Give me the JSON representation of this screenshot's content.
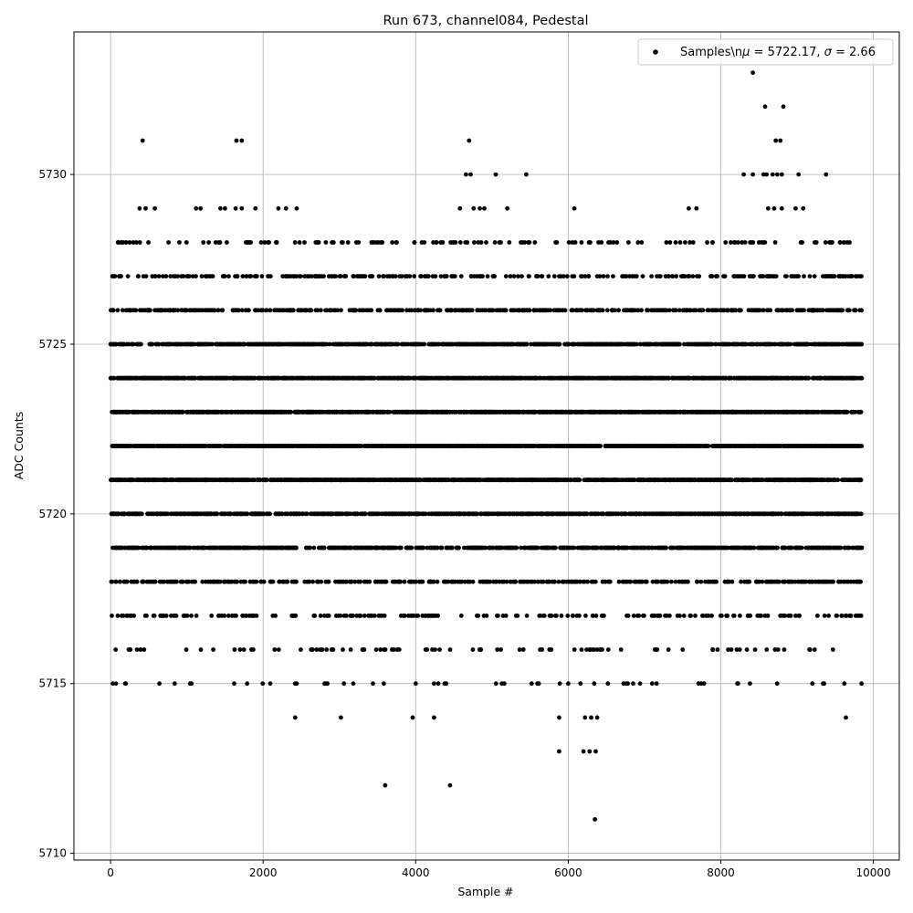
{
  "chart_data": {
    "type": "scatter",
    "title": "Run 673, channel084, Pedestal",
    "xlabel": "Sample #",
    "ylabel": "ADC Counts",
    "xlim": [
      -480,
      10340
    ],
    "ylim": [
      5709.8,
      5734.2
    ],
    "xticks": [
      0,
      2000,
      4000,
      6000,
      8000,
      10000
    ],
    "xtick_labels": [
      "0",
      "2000",
      "4000",
      "6000",
      "8000",
      "10000"
    ],
    "yticks": [
      5710,
      5715,
      5720,
      5725,
      5730
    ],
    "ytick_labels": [
      "5710",
      "5715",
      "5720",
      "5725",
      "5730"
    ],
    "grid": true,
    "legend_position": "top-right",
    "marker_color": "#000000",
    "series": [
      {
        "name": "Samples\\n$\\mu$ = 5722.17, $\\sigma$ = 2.66",
        "legend_prefix": "Samples\\n",
        "legend_mu": "μ",
        "legend_mu_value": " = 5722.17, ",
        "legend_sigma": "σ",
        "legend_sigma_value": " = 2.66",
        "sample_count": 9850,
        "mean": 5722.17,
        "sigma": 2.66,
        "points": [
          [
            30,
            5715
          ],
          [
            420,
            5731
          ],
          [
            1650,
            5731
          ],
          [
            1720,
            5731
          ],
          [
            4700,
            5731
          ],
          [
            8420,
            5733
          ],
          [
            8580,
            5732
          ],
          [
            8820,
            5732
          ],
          [
            8720,
            5731
          ],
          [
            8780,
            5731
          ],
          [
            3600,
            5712
          ],
          [
            4450,
            5712
          ],
          [
            6350,
            5711
          ],
          [
            5880,
            5713
          ],
          [
            6200,
            5713
          ],
          [
            6280,
            5713
          ],
          [
            6360,
            5713
          ],
          [
            2420,
            5714
          ],
          [
            3020,
            5714
          ],
          [
            3960,
            5714
          ],
          [
            4240,
            5714
          ],
          [
            5880,
            5714
          ],
          [
            6220,
            5714
          ],
          [
            6300,
            5714
          ],
          [
            6380,
            5714
          ],
          [
            9640,
            5714
          ],
          [
            640,
            5715
          ],
          [
            840,
            5715
          ],
          [
            1060,
            5715
          ],
          [
            1620,
            5715
          ],
          [
            2420,
            5715
          ],
          [
            2820,
            5715
          ],
          [
            3060,
            5715
          ],
          [
            3440,
            5715
          ],
          [
            4000,
            5715
          ],
          [
            4240,
            5715
          ],
          [
            4380,
            5715
          ],
          [
            5520,
            5715
          ],
          [
            6000,
            5715
          ],
          [
            6160,
            5715
          ],
          [
            6340,
            5715
          ],
          [
            6520,
            5715
          ],
          [
            6780,
            5715
          ],
          [
            7100,
            5715
          ],
          [
            7780,
            5715
          ],
          [
            9200,
            5715
          ],
          [
            9340,
            5715
          ],
          [
            9620,
            5715
          ],
          [
            4660,
            5730
          ],
          [
            4720,
            5730
          ],
          [
            5050,
            5730
          ],
          [
            5450,
            5730
          ],
          [
            8300,
            5730
          ],
          [
            8420,
            5730
          ],
          [
            8560,
            5730
          ],
          [
            8600,
            5730
          ],
          [
            8680,
            5730
          ],
          [
            8740,
            5730
          ],
          [
            8800,
            5730
          ],
          [
            9020,
            5730
          ],
          [
            9380,
            5730
          ],
          [
            380,
            5729
          ],
          [
            460,
            5729
          ],
          [
            580,
            5729
          ],
          [
            1120,
            5729
          ],
          [
            1180,
            5729
          ],
          [
            1440,
            5729
          ],
          [
            1500,
            5729
          ],
          [
            1640,
            5729
          ],
          [
            1720,
            5729
          ],
          [
            1900,
            5729
          ],
          [
            2200,
            5729
          ],
          [
            2300,
            5729
          ],
          [
            2440,
            5729
          ],
          [
            4580,
            5729
          ],
          [
            4760,
            5729
          ],
          [
            4840,
            5729
          ],
          [
            4900,
            5729
          ],
          [
            5200,
            5729
          ],
          [
            6080,
            5729
          ],
          [
            7580,
            5729
          ],
          [
            7680,
            5729
          ],
          [
            8620,
            5729
          ],
          [
            8700,
            5729
          ],
          [
            8800,
            5729
          ],
          [
            8980,
            5729
          ],
          [
            9080,
            5729
          ]
        ]
      }
    ]
  }
}
